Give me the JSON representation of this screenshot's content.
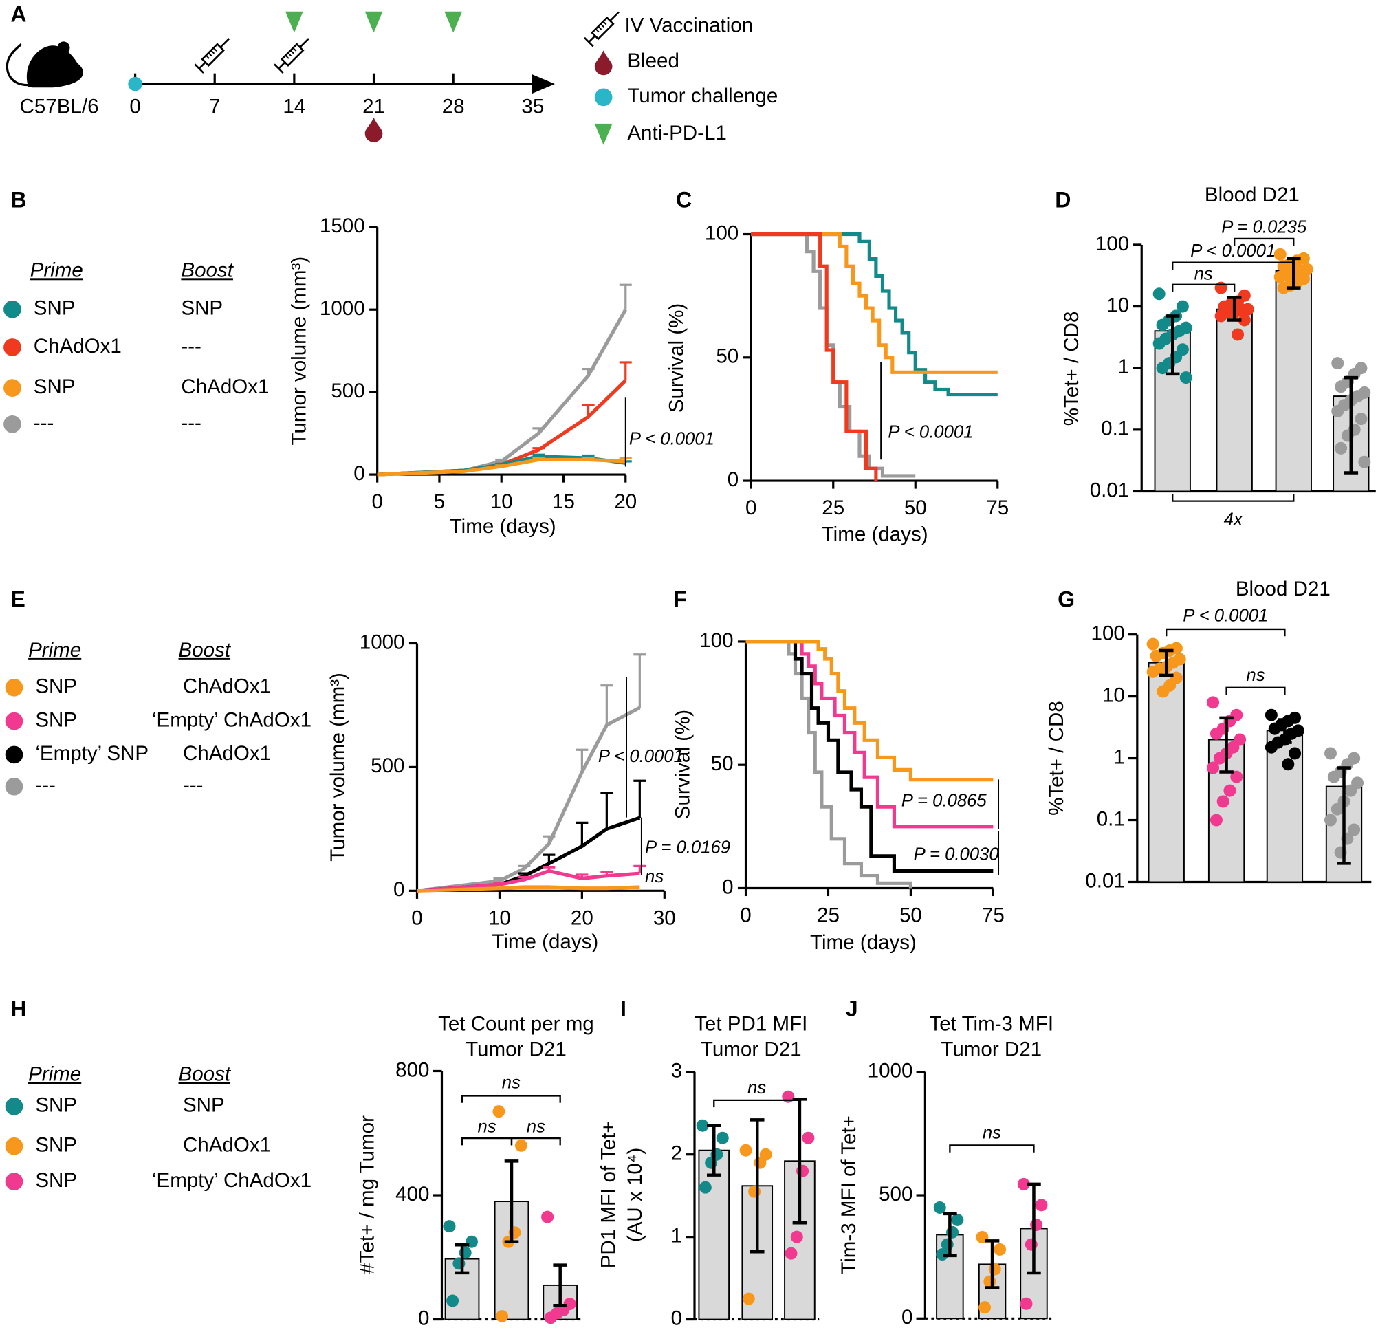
{
  "panel_labels": [
    "A",
    "B",
    "C",
    "D",
    "E",
    "F",
    "G",
    "H",
    "I",
    "J"
  ],
  "timeline": {
    "strain": "C57BL/6",
    "ticks": [
      0,
      7,
      14,
      21,
      28,
      35
    ],
    "challenge_days": [
      0
    ],
    "vaccination_days": [
      7,
      14
    ],
    "anti_pdl1_days": [
      14,
      21,
      28
    ],
    "bleed_days": [
      21
    ],
    "colors": {
      "challenge": "#2bb5c9",
      "bleed": "#8b1a2b",
      "anti_pdl1": "#4caf50"
    },
    "legend": [
      "IV Vaccination",
      "Bleed",
      "Tumor challenge",
      "Anti-PD-L1"
    ]
  },
  "legends": [
    {
      "headers": [
        "Prime",
        "Boost"
      ],
      "rows": [
        {
          "color": "#138a8a",
          "prime": "SNP",
          "boost": "SNP"
        },
        {
          "color": "#f03a1f",
          "prime": "ChAdOx1",
          "boost": "---"
        },
        {
          "color": "#f7981d",
          "prime": "SNP",
          "boost": "ChAdOx1"
        },
        {
          "color": "#9b9b9b",
          "prime": "---",
          "boost": "---"
        }
      ]
    },
    {
      "headers": [
        "Prime",
        "Boost"
      ],
      "rows": [
        {
          "color": "#f7981d",
          "prime": "SNP",
          "boost": "ChAdOx1"
        },
        {
          "color": "#f0398f",
          "prime": "SNP",
          "boost": "‘Empty’ ChAdOx1"
        },
        {
          "color": "#000000",
          "prime": "‘Empty’ SNP",
          "boost": "ChAdOx1"
        },
        {
          "color": "#9b9b9b",
          "prime": "---",
          "boost": "---"
        }
      ]
    },
    {
      "headers": [
        "Prime",
        "Boost"
      ],
      "rows": [
        {
          "color": "#138a8a",
          "prime": "SNP",
          "boost": "SNP"
        },
        {
          "color": "#f7981d",
          "prime": "SNP",
          "boost": "ChAdOx1"
        },
        {
          "color": "#f0398f",
          "prime": "SNP",
          "boost": "‘Empty’ ChAdOx1"
        }
      ]
    }
  ],
  "chart_data": [
    {
      "type": "line",
      "x": [
        0,
        7,
        10,
        13,
        17,
        20
      ],
      "xlim": [
        0,
        20
      ],
      "ylim": [
        0,
        1500
      ],
      "xticks": [
        0,
        5,
        10,
        15,
        20
      ],
      "yticks": [
        0,
        500,
        1000,
        1500
      ],
      "xlabel": "Time (days)",
      "ylabel": "Tumor volume (mm³)",
      "series": [
        {
          "color": "#9b9b9b",
          "values": [
            0,
            25,
            80,
            250,
            600,
            1000
          ],
          "errors": [
            0,
            0,
            10,
            30,
            40,
            150
          ]
        },
        {
          "color": "#f03a1f",
          "values": [
            0,
            25,
            60,
            150,
            350,
            570
          ],
          "errors": [
            0,
            0,
            5,
            10,
            70,
            110
          ]
        },
        {
          "color": "#138a8a",
          "values": [
            0,
            25,
            60,
            110,
            100,
            70
          ],
          "errors": [
            0,
            0,
            5,
            10,
            15,
            10
          ]
        },
        {
          "color": "#f7981d",
          "values": [
            0,
            20,
            50,
            90,
            90,
            80
          ],
          "errors": [
            0,
            0,
            5,
            10,
            10,
            20
          ]
        }
      ],
      "annotations": [
        "P < 0.0001"
      ]
    },
    {
      "type": "step",
      "xlim": [
        0,
        75
      ],
      "ylim": [
        0,
        100
      ],
      "xticks": [
        0,
        25,
        50,
        75
      ],
      "yticks": [
        0,
        50,
        100
      ],
      "xlabel": "Time (days)",
      "ylabel": "Survival (%)",
      "series": [
        {
          "color": "#138a8a",
          "x": [
            0,
            33,
            36,
            38,
            40,
            42,
            44,
            46,
            48,
            50,
            53,
            56,
            60,
            75
          ],
          "values": [
            100,
            97,
            90,
            83,
            77,
            70,
            65,
            60,
            52,
            45,
            40,
            37,
            35,
            35
          ]
        },
        {
          "color": "#f7981d",
          "x": [
            0,
            27,
            29,
            31,
            33,
            35,
            37,
            39,
            41,
            43,
            75
          ],
          "values": [
            100,
            95,
            87,
            80,
            75,
            70,
            65,
            55,
            50,
            44,
            44
          ]
        },
        {
          "color": "#9b9b9b",
          "x": [
            0,
            17,
            19,
            21,
            23,
            25,
            27,
            30,
            33,
            36,
            40,
            50
          ],
          "values": [
            100,
            93,
            85,
            70,
            55,
            40,
            30,
            20,
            10,
            5,
            2,
            2
          ]
        },
        {
          "color": "#f03a1f",
          "x": [
            0,
            21,
            23,
            25,
            29,
            35,
            38
          ],
          "values": [
            100,
            87,
            53,
            40,
            20,
            5,
            0
          ]
        }
      ],
      "annotations": [
        "P < 0.0001"
      ]
    },
    {
      "type": "bar",
      "log": true,
      "ylim": [
        0.01,
        100
      ],
      "yticks": [
        0.01,
        0.1,
        1,
        10,
        100
      ],
      "ylabel": "%Tet+ / CD8",
      "title": "Blood D21",
      "bar_color": "#d9d9d9",
      "colors": [
        "#138a8a",
        "#f03a1f",
        "#f7981d",
        "#9b9b9b"
      ],
      "values": [
        4,
        9,
        38,
        0.35
      ],
      "lower": [
        0.8,
        6,
        20,
        0.02
      ],
      "upper": [
        7,
        14,
        60,
        0.7
      ],
      "points": [
        [
          16,
          10,
          7,
          6,
          5,
          4.5,
          4,
          3.5,
          3,
          2.5,
          2,
          1.5,
          1.2,
          1,
          0.7
        ],
        [
          20,
          15,
          12,
          11,
          10,
          9,
          9,
          8,
          8,
          7,
          6,
          3.5
        ],
        [
          70,
          60,
          55,
          50,
          45,
          40,
          38,
          35,
          32,
          30,
          28,
          25,
          22,
          20
        ],
        [
          1.2,
          1,
          0.8,
          0.6,
          0.5,
          0.4,
          0.35,
          0.3,
          0.25,
          0.2,
          0.15,
          0.1,
          0.08,
          0.05,
          0.03
        ]
      ],
      "annotations": [
        "P < 0.0001",
        "ns",
        "P = 0.0235",
        "4x"
      ]
    },
    {
      "type": "line",
      "x": [
        0,
        10,
        13,
        16,
        20,
        23,
        27
      ],
      "xlim": [
        0,
        30
      ],
      "ylim": [
        0,
        1000
      ],
      "xticks": [
        0,
        10,
        20,
        30
      ],
      "yticks": [
        0,
        500,
        1000
      ],
      "xlabel": "Time (days)",
      "ylabel": "Tumor volume (mm³)",
      "series": [
        {
          "color": "#9b9b9b",
          "values": [
            0,
            40,
            90,
            190,
            480,
            670,
            740
          ],
          "errors": [
            0,
            10,
            10,
            30,
            90,
            160,
            215
          ]
        },
        {
          "color": "#000000",
          "values": [
            0,
            25,
            60,
            110,
            180,
            250,
            295
          ],
          "errors": [
            0,
            5,
            10,
            35,
            95,
            145,
            150
          ]
        },
        {
          "color": "#f0398f",
          "values": [
            0,
            25,
            45,
            80,
            50,
            60,
            70
          ],
          "errors": [
            0,
            5,
            10,
            15,
            15,
            15,
            30
          ]
        },
        {
          "color": "#f7981d",
          "values": [
            0,
            10,
            15,
            15,
            10,
            10,
            15
          ],
          "errors": [
            0,
            0,
            0,
            0,
            0,
            0,
            0
          ]
        }
      ],
      "annotations": [
        "P < 0.0001",
        "P = 0.0169",
        "ns"
      ]
    },
    {
      "type": "step",
      "xlim": [
        0,
        75
      ],
      "ylim": [
        0,
        100
      ],
      "xticks": [
        0,
        25,
        50,
        75
      ],
      "yticks": [
        0,
        50,
        100
      ],
      "xlabel": "Time (days)",
      "ylabel": "Survival (%)",
      "series": [
        {
          "color": "#9b9b9b",
          "x": [
            0,
            13,
            15,
            17,
            19,
            21,
            23,
            26,
            30,
            35,
            40,
            50
          ],
          "values": [
            100,
            95,
            87,
            77,
            63,
            47,
            33,
            20,
            10,
            5,
            2,
            0
          ]
        },
        {
          "color": "#000000",
          "x": [
            0,
            15,
            17,
            20,
            22,
            25,
            28,
            32,
            35,
            38,
            45,
            75
          ],
          "values": [
            100,
            93,
            87,
            73,
            67,
            60,
            47,
            40,
            33,
            13,
            7,
            7
          ]
        },
        {
          "color": "#f0398f",
          "x": [
            0,
            17,
            19,
            21,
            23,
            27,
            30,
            33,
            36,
            40,
            45,
            75
          ],
          "values": [
            100,
            95,
            90,
            83,
            77,
            70,
            63,
            55,
            45,
            33,
            25,
            25
          ]
        },
        {
          "color": "#f7981d",
          "x": [
            0,
            22,
            24,
            26,
            28,
            30,
            33,
            36,
            40,
            45,
            50,
            75
          ],
          "values": [
            100,
            97,
            93,
            87,
            80,
            73,
            67,
            60,
            53,
            48,
            44,
            44
          ]
        }
      ],
      "annotations": [
        "P = 0.0865",
        "P = 0.0030"
      ]
    },
    {
      "type": "bar",
      "log": true,
      "ylim": [
        0.01,
        100
      ],
      "yticks": [
        0.01,
        0.1,
        1,
        10,
        100
      ],
      "ylabel": "%Tet+ / CD8",
      "title": "Blood D21",
      "bar_color": "#d9d9d9",
      "colors": [
        "#f7981d",
        "#f0398f",
        "#000000",
        "#9b9b9b"
      ],
      "values": [
        35,
        2,
        2.8,
        0.35
      ],
      "lower": [
        22,
        0.6,
        1.8,
        0.02
      ],
      "upper": [
        55,
        4.5,
        4.2,
        0.7
      ],
      "points": [
        [
          70,
          60,
          55,
          50,
          45,
          40,
          35,
          30,
          28,
          25,
          20,
          15,
          12
        ],
        [
          8,
          5,
          4,
          3,
          2.5,
          2,
          1.5,
          1.2,
          1,
          0.7,
          0.5,
          0.3,
          0.2,
          0.1
        ],
        [
          5,
          4.5,
          4,
          3.5,
          3,
          2.8,
          2.5,
          2,
          1.8,
          1.5,
          1.2,
          0.8
        ],
        [
          1.2,
          1,
          0.8,
          0.6,
          0.5,
          0.4,
          0.3,
          0.2,
          0.15,
          0.1,
          0.07,
          0.05,
          0.03
        ]
      ],
      "annotations": [
        "P < 0.0001",
        "ns"
      ]
    },
    {
      "type": "bar",
      "ylim": [
        0,
        800
      ],
      "yticks": [
        0,
        400,
        800
      ],
      "ylabel": "#Tet+ / mg Tumor",
      "title": [
        "Tet Count per mg",
        "Tumor D21"
      ],
      "bar_color": "#d9d9d9",
      "colors": [
        "#138a8a",
        "#f7981d",
        "#f0398f"
      ],
      "values": [
        195,
        380,
        110
      ],
      "errors": [
        45,
        130,
        65
      ],
      "points": [
        [
          300,
          250,
          215,
          180,
          60
        ],
        [
          670,
          560,
          280,
          250,
          10
        ],
        [
          330,
          50,
          30,
          20,
          5
        ]
      ],
      "annotations": [
        "ns",
        "ns",
        "ns"
      ]
    },
    {
      "type": "bar",
      "ylim": [
        0,
        3
      ],
      "yticks": [
        0,
        1,
        2,
        3
      ],
      "ylabel": [
        "PD1 MFI of Tet+",
        "(AU x 10⁴)"
      ],
      "title": [
        "Tet PD1 MFI",
        "Tumor D21"
      ],
      "bar_color": "#d9d9d9",
      "colors": [
        "#138a8a",
        "#f7981d",
        "#f0398f"
      ],
      "values": [
        2.05,
        1.62,
        1.92
      ],
      "errors": [
        0.3,
        0.8,
        0.75
      ],
      "points": [
        [
          2.35,
          2.2,
          2.0,
          1.9,
          1.6
        ],
        [
          2.05,
          2.0,
          1.9,
          1.55,
          0.25
        ],
        [
          2.7,
          2.2,
          1.8,
          1.0,
          0.8
        ]
      ],
      "annotations": [
        "ns"
      ]
    },
    {
      "type": "bar",
      "ylim": [
        0,
        1000
      ],
      "yticks": [
        0,
        500,
        1000
      ],
      "ylabel": "Tim-3 MFI of Tet+",
      "title": [
        "Tet Tim-3 MFI",
        "Tumor D21"
      ],
      "bar_color": "#d9d9d9",
      "colors": [
        "#138a8a",
        "#f7981d",
        "#f0398f"
      ],
      "values": [
        340,
        220,
        365
      ],
      "errors": [
        85,
        95,
        180
      ],
      "points": [
        [
          450,
          400,
          350,
          300,
          260
        ],
        [
          330,
          280,
          200,
          150,
          45
        ],
        [
          545,
          460,
          380,
          300,
          60
        ]
      ],
      "annotations": [
        "ns"
      ]
    }
  ]
}
